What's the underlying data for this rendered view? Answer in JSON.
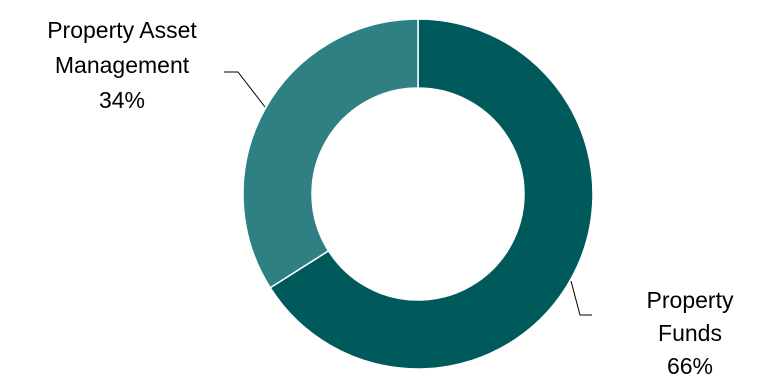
{
  "chart_data": {
    "type": "donut",
    "title": "",
    "series": [
      {
        "name": "Property Funds",
        "value": 66,
        "color": "#005A5B"
      },
      {
        "name": "Property Asset Management",
        "value": 34,
        "color": "#2F8082"
      }
    ],
    "labels": {
      "funds": [
        "Property",
        "Funds",
        "66%"
      ],
      "asset": [
        "Property Asset",
        "Management",
        "34%"
      ]
    }
  }
}
